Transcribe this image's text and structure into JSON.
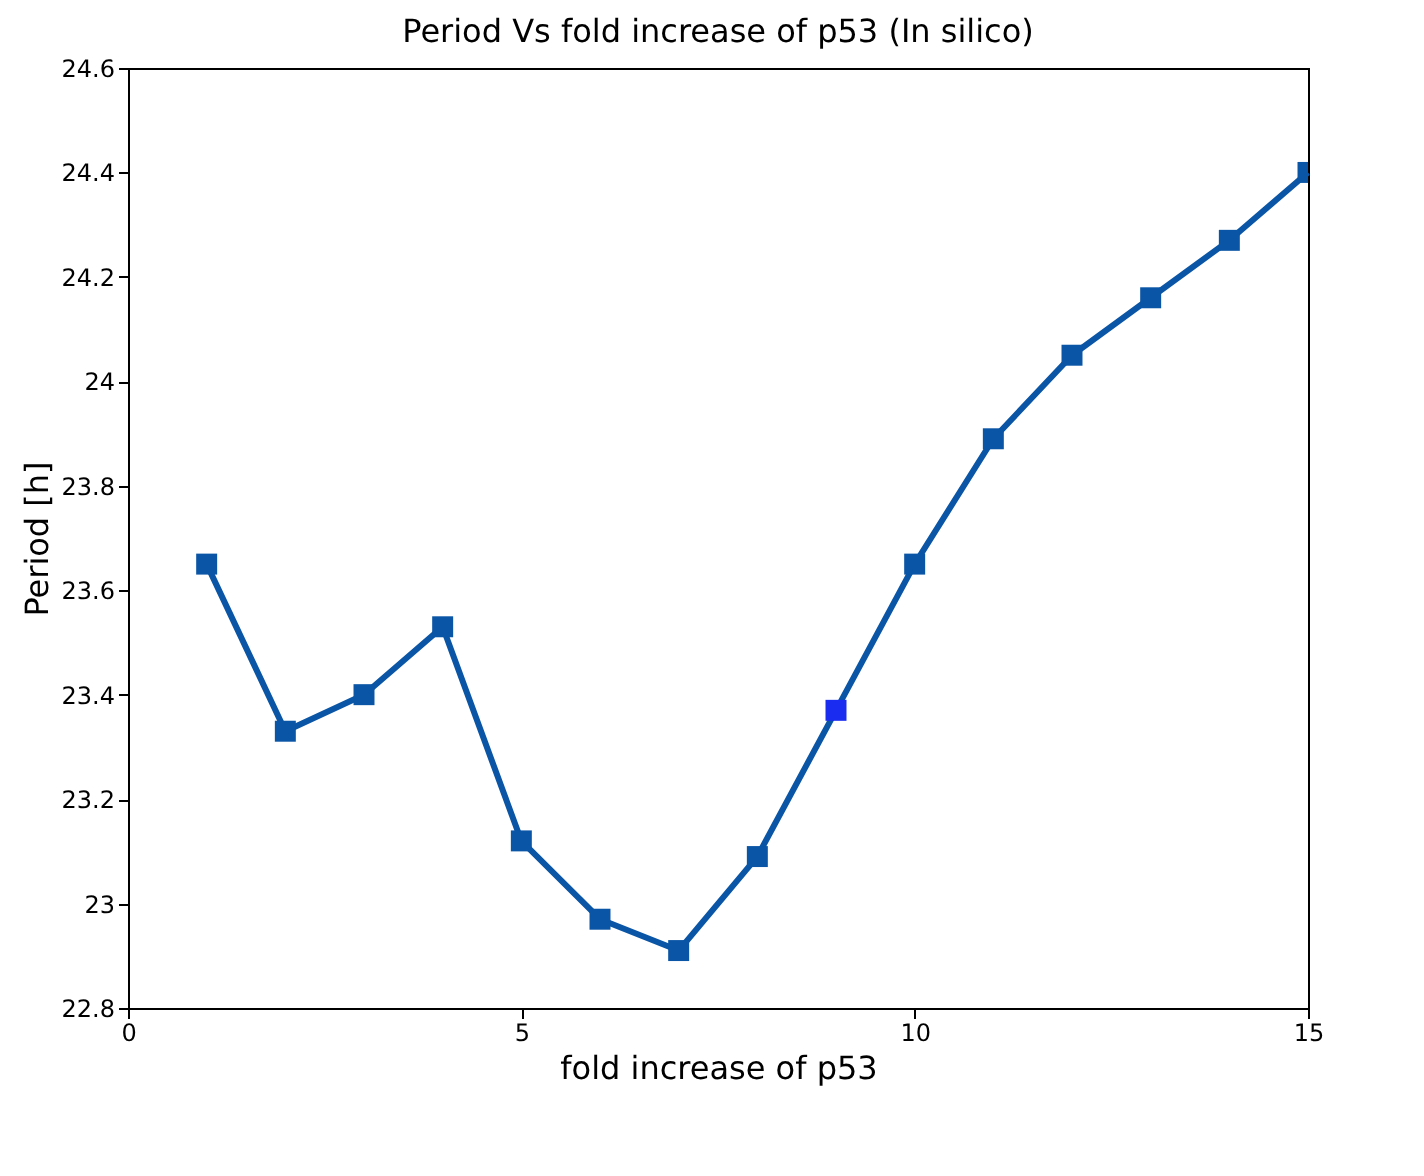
{
  "chart_data": {
    "type": "line",
    "title": "Period Vs fold increase of p53 (In silico)",
    "xlabel": "fold increase of p53",
    "ylabel": "Period [h]",
    "x": [
      1,
      2,
      3,
      4,
      5,
      6,
      7,
      8,
      9,
      10,
      11,
      12,
      13,
      14,
      15
    ],
    "series": [
      {
        "color": "#0a55a5",
        "colors": [
          "#0a55a5",
          "#0a55a5",
          "#0a55a5",
          "#0a55a5",
          "#0a55a5",
          "#0a55a5",
          "#0a55a5",
          "#0a55a5",
          "#1a2cf0",
          "#0a55a5",
          "#0a55a5",
          "#0a55a5",
          "#0a55a5",
          "#0a55a5",
          "#0a55a5"
        ],
        "values": [
          23.65,
          23.33,
          23.4,
          23.53,
          23.12,
          22.97,
          22.91,
          23.09,
          23.37,
          23.65,
          23.89,
          24.05,
          24.16,
          24.27,
          24.4
        ]
      }
    ],
    "xlim": [
      0,
      15
    ],
    "ylim": [
      22.8,
      24.6
    ],
    "xticks": [
      0,
      5,
      10,
      15
    ],
    "yticks": [
      22.8,
      23,
      23.2,
      23.4,
      23.6,
      23.8,
      24,
      24.2,
      24.4,
      24.6
    ],
    "marker": "square",
    "line_style": "solid",
    "grid": false
  }
}
